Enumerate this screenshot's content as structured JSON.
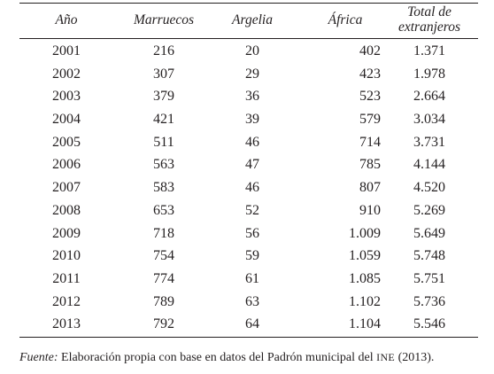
{
  "headers": {
    "year": "Año",
    "morocco": "Marruecos",
    "algeria": "Argelia",
    "africa": "África",
    "total_line1": "Total de",
    "total_line2": "extranjeros"
  },
  "rows": [
    {
      "year": "2001",
      "morocco": "216",
      "algeria": "20",
      "africa": "402",
      "total": "1.371"
    },
    {
      "year": "2002",
      "morocco": "307",
      "algeria": "29",
      "africa": "423",
      "total": "1.978"
    },
    {
      "year": "2003",
      "morocco": "379",
      "algeria": "36",
      "africa": "523",
      "total": "2.664"
    },
    {
      "year": "2004",
      "morocco": "421",
      "algeria": "39",
      "africa": "579",
      "total": "3.034"
    },
    {
      "year": "2005",
      "morocco": "511",
      "algeria": "46",
      "africa": "714",
      "total": "3.731"
    },
    {
      "year": "2006",
      "morocco": "563",
      "algeria": "47",
      "africa": "785",
      "total": "4.144"
    },
    {
      "year": "2007",
      "morocco": "583",
      "algeria": "46",
      "africa": "807",
      "total": "4.520"
    },
    {
      "year": "2008",
      "morocco": "653",
      "algeria": "52",
      "africa": "910",
      "total": "5.269"
    },
    {
      "year": "2009",
      "morocco": "718",
      "algeria": "56",
      "africa": "1.009",
      "total": "5.649"
    },
    {
      "year": "2010",
      "morocco": "754",
      "algeria": "59",
      "africa": "1.059",
      "total": "5.748"
    },
    {
      "year": "2011",
      "morocco": "774",
      "algeria": "61",
      "africa": "1.085",
      "total": "5.751"
    },
    {
      "year": "2012",
      "morocco": "789",
      "algeria": "63",
      "africa": "1.102",
      "total": "5.736"
    },
    {
      "year": "2013",
      "morocco": "792",
      "algeria": "64",
      "africa": "1.104",
      "total": "5.546"
    }
  ],
  "source": {
    "label": "Fuente:",
    "text": " Elaboración propia con base en datos del Padrón municipal del ",
    "abbr": "INE",
    "tail": " (2013)."
  }
}
